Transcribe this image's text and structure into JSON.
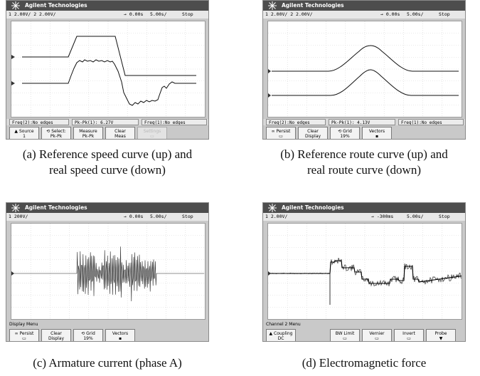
{
  "panels": [
    {
      "brand": "Agilent Technologies",
      "channels": "1 2.00V/  2 2.00V/",
      "position": "→ 0.00s",
      "timebase": "5.00s/",
      "run_state": "Stop",
      "measurements": [
        "Freq(2):No edges",
        "Pk-Pk(1): 6.27V",
        "Freq(1):No edges"
      ],
      "softkeys": [
        {
          "line1": "▲ Source",
          "line2": "1"
        },
        {
          "line1": "⟲ Select:",
          "line2": "Pk-Pk"
        },
        {
          "line1": "Measure",
          "line2": "Pk-Pk"
        },
        {
          "line1": "Clear",
          "line2": "Meas"
        },
        {
          "line1": "Settings",
          "line2": "▭"
        }
      ],
      "caption_line1": "(a) Reference speed curve (up) and",
      "caption_line2": "real speed curve (down)"
    },
    {
      "brand": "Agilent Technologies",
      "channels": "1 2.00V/  2 2.00V/",
      "position": "→ 0.00s",
      "timebase": "5.00s/",
      "run_state": "Stop",
      "measurements": [
        "Freq(2):No edges",
        "Pk-Pk(1): 4.13V",
        "Freq(1):No edges"
      ],
      "softkeys": [
        {
          "line1": "∞ Persist",
          "line2": "▭"
        },
        {
          "line1": "Clear",
          "line2": "Display"
        },
        {
          "line1": "⟲ Grid",
          "line2": "19%"
        },
        {
          "line1": "Vectors",
          "line2": "▪"
        }
      ],
      "caption_line1": "(b) Reference route curve (up) and",
      "caption_line2": "real route curve (down)"
    },
    {
      "brand": "Agilent Technologies",
      "channels": "1 200V/",
      "position": "→ 0.00s",
      "timebase": "5.00s/",
      "run_state": "Stop",
      "menu_title": "Display Menu",
      "softkeys": [
        {
          "line1": "∞ Persist",
          "line2": "▭"
        },
        {
          "line1": "Clear",
          "line2": "Display"
        },
        {
          "line1": "⟲ Grid",
          "line2": "19%"
        },
        {
          "line1": "Vectors",
          "line2": "▪"
        }
      ],
      "caption_line1": "(c) Armature current (phase A)"
    },
    {
      "brand": "Agilent Technologies",
      "channels": "1 2.00V/",
      "position": "→ -300ms",
      "timebase": "5.00s/",
      "run_state": "Stop",
      "menu_title": "Channel 2  Menu",
      "softkeys": [
        {
          "line1": "▲ Coupling",
          "line2": "DC"
        },
        {
          "line1": "BW Limit",
          "line2": "▭"
        },
        {
          "line1": "Vernier",
          "line2": "▭"
        },
        {
          "line1": "Invert",
          "line2": "▭"
        },
        {
          "line1": "Probe",
          "line2": "▼"
        }
      ],
      "caption_line1": "(d) Electromagnetic force"
    }
  ]
}
